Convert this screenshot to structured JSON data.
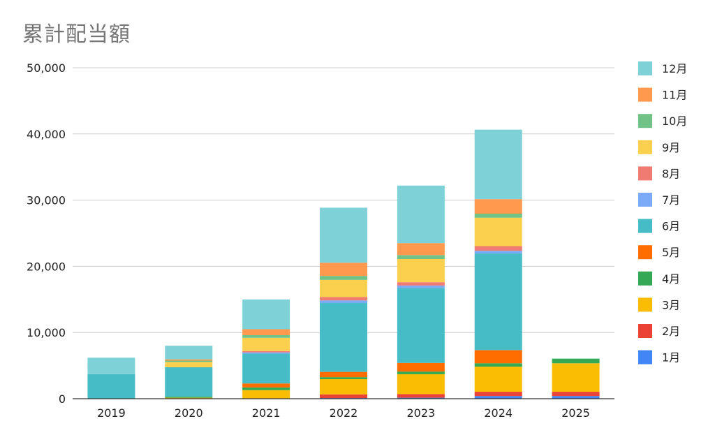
{
  "chart_data": {
    "type": "bar",
    "stacked": true,
    "title": "累計配当額",
    "xlabel": "",
    "ylabel": "",
    "categories": [
      "2019",
      "2020",
      "2021",
      "2022",
      "2023",
      "2024",
      "2025"
    ],
    "ylim": [
      0,
      50000
    ],
    "yticks": [
      0,
      10000,
      20000,
      30000,
      40000,
      50000
    ],
    "ytick_labels": [
      "0",
      "10,000",
      "20,000",
      "30,000",
      "40,000",
      "50,000"
    ],
    "grid": true,
    "legend_position": "right",
    "series": [
      {
        "name": "1月",
        "color": "#4285F4",
        "values": [
          0,
          0,
          0,
          100,
          150,
          400,
          400
        ]
      },
      {
        "name": "2月",
        "color": "#EA4335",
        "values": [
          0,
          0,
          0,
          550,
          550,
          650,
          650
        ]
      },
      {
        "name": "3月",
        "color": "#FBBC04",
        "values": [
          0,
          150,
          1300,
          2300,
          3000,
          3800,
          4300
        ]
      },
      {
        "name": "4月",
        "color": "#34A853",
        "values": [
          0,
          150,
          400,
          300,
          400,
          500,
          700
        ]
      },
      {
        "name": "5月",
        "color": "#FF6D01",
        "values": [
          0,
          0,
          600,
          800,
          1300,
          2000,
          0
        ]
      },
      {
        "name": "6月",
        "color": "#46BDC6",
        "values": [
          3700,
          4450,
          4500,
          10400,
          11300,
          14600,
          0
        ]
      },
      {
        "name": "7月",
        "color": "#7BAAF7",
        "values": [
          0,
          0,
          200,
          400,
          400,
          400,
          0
        ]
      },
      {
        "name": "8月",
        "color": "#F07B72",
        "values": [
          0,
          0,
          200,
          500,
          500,
          700,
          0
        ]
      },
      {
        "name": "9月",
        "color": "#FCD04F",
        "values": [
          0,
          800,
          2000,
          2600,
          3500,
          4300,
          0
        ]
      },
      {
        "name": "10月",
        "color": "#71C287",
        "values": [
          0,
          200,
          400,
          600,
          600,
          600,
          0
        ]
      },
      {
        "name": "11月",
        "color": "#FF994D",
        "values": [
          0,
          200,
          900,
          2000,
          1800,
          2200,
          0
        ]
      },
      {
        "name": "12月",
        "color": "#7ED1D7",
        "values": [
          2500,
          2050,
          4500,
          8300,
          8700,
          10500,
          0
        ]
      }
    ]
  }
}
